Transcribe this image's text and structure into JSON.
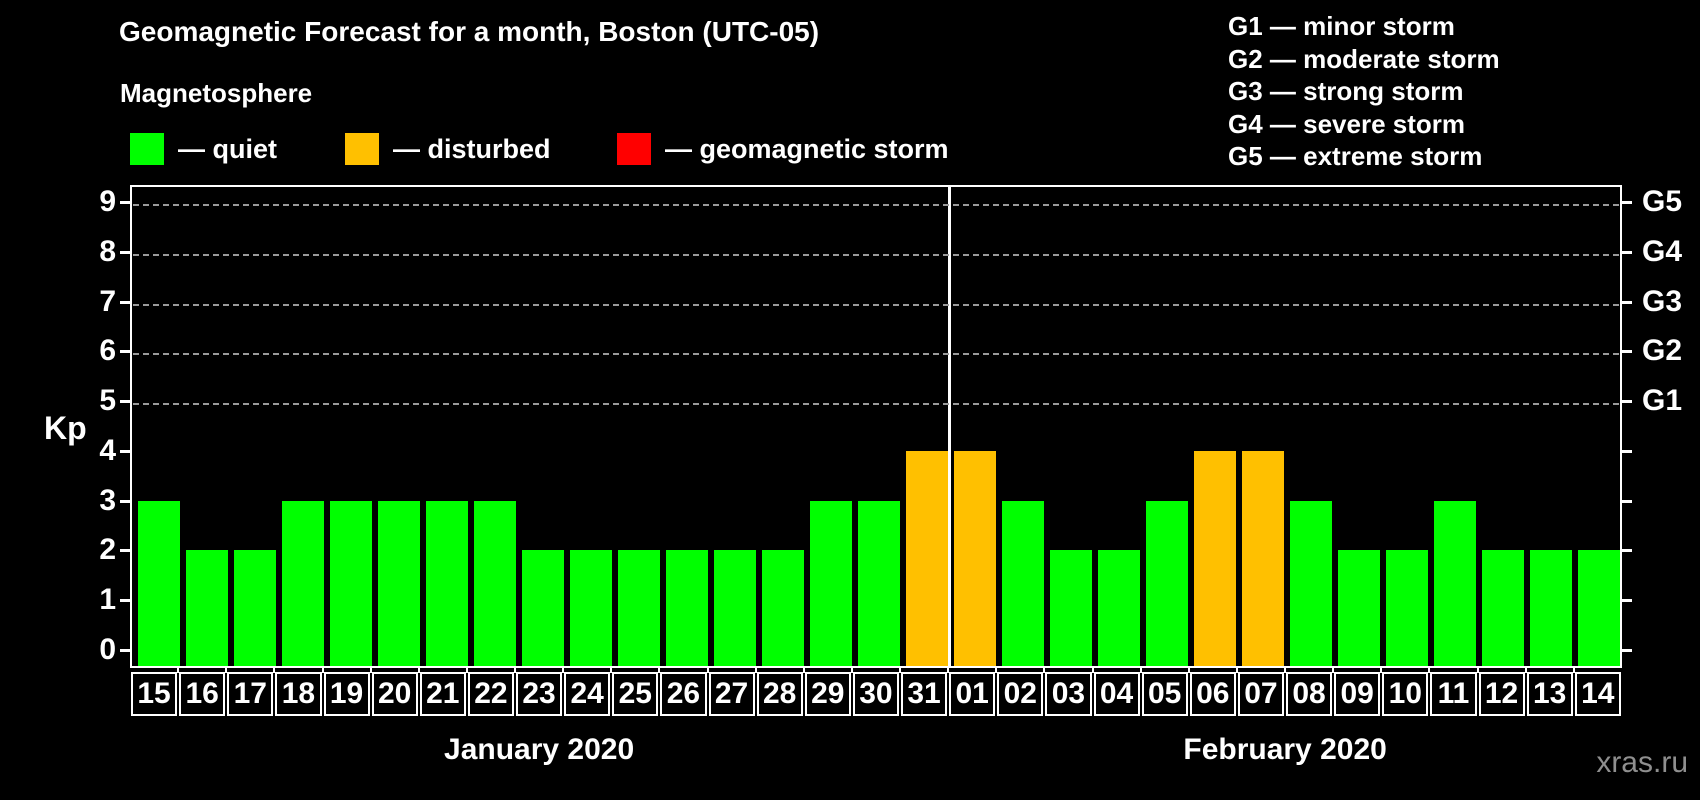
{
  "title": "Geomagnetic Forecast for a month, Boston (UTC-05)",
  "legend": {
    "title": "Magnetosphere",
    "items": [
      {
        "name": "quiet",
        "label": "— quiet",
        "color": "#00ff00"
      },
      {
        "name": "disturbed",
        "label": "— disturbed",
        "color": "#ffc000"
      },
      {
        "name": "storm",
        "label": "— geomagnetic storm",
        "color": "#ff0000"
      }
    ]
  },
  "g_scale_legend": [
    "G1 — minor storm",
    "G2 — moderate storm",
    "G3 — strong storm",
    "G4 — severe storm",
    "G5 — extreme storm"
  ],
  "watermark": "xras.ru",
  "chart_data": {
    "type": "bar",
    "ylabel": "Kp",
    "ylim": [
      0,
      9
    ],
    "y_ticks": [
      0,
      1,
      2,
      3,
      4,
      5,
      6,
      7,
      8,
      9
    ],
    "gridlines_at_kp": [
      5,
      6,
      7,
      8,
      9
    ],
    "grid": true,
    "right_axis_labels": [
      {
        "label": "G1",
        "kp": 5
      },
      {
        "label": "G2",
        "kp": 6
      },
      {
        "label": "G3",
        "kp": 7
      },
      {
        "label": "G4",
        "kp": 8
      },
      {
        "label": "G5",
        "kp": 9
      }
    ],
    "status_colors": {
      "quiet": "#00ff00",
      "disturbed": "#ffc000",
      "storm": "#ff0000"
    },
    "months": [
      {
        "label": "January 2020",
        "bars": [
          {
            "day": "15",
            "kp": 3,
            "status": "quiet"
          },
          {
            "day": "16",
            "kp": 2,
            "status": "quiet"
          },
          {
            "day": "17",
            "kp": 2,
            "status": "quiet"
          },
          {
            "day": "18",
            "kp": 3,
            "status": "quiet"
          },
          {
            "day": "19",
            "kp": 3,
            "status": "quiet"
          },
          {
            "day": "20",
            "kp": 3,
            "status": "quiet"
          },
          {
            "day": "21",
            "kp": 3,
            "status": "quiet"
          },
          {
            "day": "22",
            "kp": 3,
            "status": "quiet"
          },
          {
            "day": "23",
            "kp": 2,
            "status": "quiet"
          },
          {
            "day": "24",
            "kp": 2,
            "status": "quiet"
          },
          {
            "day": "25",
            "kp": 2,
            "status": "quiet"
          },
          {
            "day": "26",
            "kp": 2,
            "status": "quiet"
          },
          {
            "day": "27",
            "kp": 2,
            "status": "quiet"
          },
          {
            "day": "28",
            "kp": 2,
            "status": "quiet"
          },
          {
            "day": "29",
            "kp": 3,
            "status": "quiet"
          },
          {
            "day": "30",
            "kp": 3,
            "status": "quiet"
          },
          {
            "day": "31",
            "kp": 4,
            "status": "disturbed"
          }
        ]
      },
      {
        "label": "February 2020",
        "bars": [
          {
            "day": "01",
            "kp": 4,
            "status": "disturbed"
          },
          {
            "day": "02",
            "kp": 3,
            "status": "quiet"
          },
          {
            "day": "03",
            "kp": 2,
            "status": "quiet"
          },
          {
            "day": "04",
            "kp": 2,
            "status": "quiet"
          },
          {
            "day": "05",
            "kp": 3,
            "status": "quiet"
          },
          {
            "day": "06",
            "kp": 4,
            "status": "disturbed"
          },
          {
            "day": "07",
            "kp": 4,
            "status": "disturbed"
          },
          {
            "day": "08",
            "kp": 3,
            "status": "quiet"
          },
          {
            "day": "09",
            "kp": 2,
            "status": "quiet"
          },
          {
            "day": "10",
            "kp": 2,
            "status": "quiet"
          },
          {
            "day": "11",
            "kp": 3,
            "status": "quiet"
          },
          {
            "day": "12",
            "kp": 2,
            "status": "quiet"
          },
          {
            "day": "13",
            "kp": 2,
            "status": "quiet"
          },
          {
            "day": "14",
            "kp": 2,
            "status": "quiet"
          }
        ]
      }
    ]
  }
}
